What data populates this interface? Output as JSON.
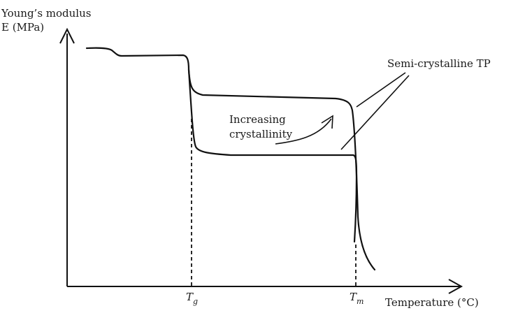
{
  "chart_data": {
    "type": "line",
    "title": "",
    "ylabel_line1": "Young’s modulus",
    "ylabel_line2": "E (MPa)",
    "xlabel": "Temperature (°C)",
    "x_ticks": [
      {
        "base": "T",
        "sub": "g"
      },
      {
        "base": "T",
        "sub": "m"
      }
    ],
    "annotations": {
      "series_label": "Semi-crystalline TP",
      "trend_line1": "Increasing",
      "trend_line2": "crystallinity"
    },
    "series": [
      {
        "values": [
          [
            0.0,
            0.86
          ],
          [
            0.23,
            0.84
          ],
          [
            0.43,
            0.78
          ],
          [
            0.45,
            0.62
          ],
          [
            0.45,
            0.54
          ],
          [
            0.78,
            0.56
          ],
          [
            0.83,
            0.52
          ],
          [
            0.85,
            0.05
          ],
          [
            0.86,
            -0.02
          ]
        ]
      },
      {
        "values": [
          [
            0.0,
            0.86
          ],
          [
            0.23,
            0.84
          ],
          [
            0.43,
            0.78
          ],
          [
            0.45,
            0.6
          ],
          [
            0.46,
            0.35
          ],
          [
            0.5,
            0.32
          ],
          [
            0.81,
            0.32
          ],
          [
            0.83,
            0.3
          ],
          [
            0.85,
            0.05
          ],
          [
            0.86,
            -0.02
          ]
        ]
      }
    ],
    "grid": false,
    "legend": "none"
  }
}
